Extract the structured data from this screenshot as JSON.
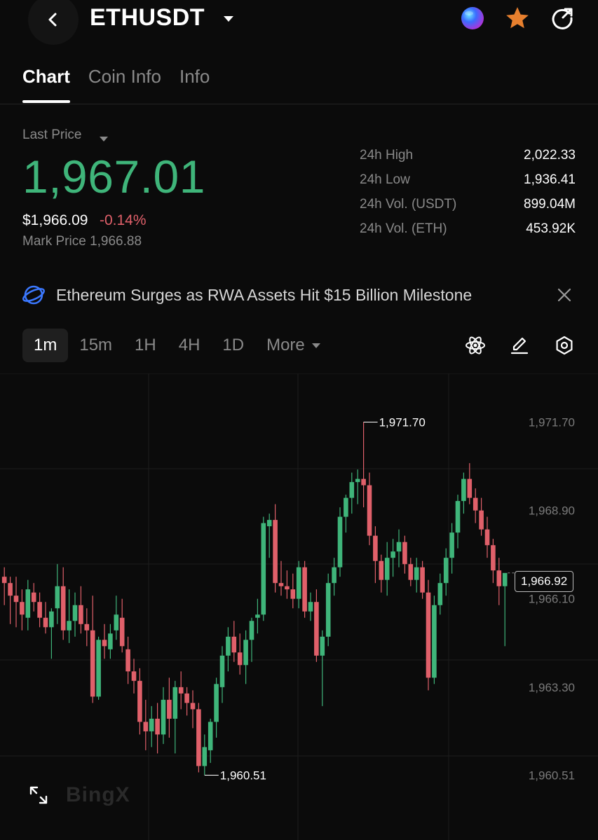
{
  "header": {
    "pair": "ETHUSDT",
    "icons": [
      "back-icon",
      "caret-down-icon",
      "ai-orb-icon",
      "star-icon",
      "share-icon"
    ]
  },
  "tabs": [
    {
      "label": "Chart",
      "active": true
    },
    {
      "label": "Coin Info",
      "active": false
    },
    {
      "label": "Info",
      "active": false
    }
  ],
  "price": {
    "last_price_label": "Last Price",
    "last_price": "1,967.01",
    "usd_price": "$1,966.09",
    "change": "-0.14%",
    "mark_price": "Mark Price 1,966.88"
  },
  "stats": [
    {
      "label": "24h High",
      "value": "2,022.33"
    },
    {
      "label": "24h Low",
      "value": "1,936.41"
    },
    {
      "label": "24h Vol. (USDT)",
      "value": "899.04M"
    },
    {
      "label": "24h Vol. (ETH)",
      "value": "453.92K"
    }
  ],
  "news": {
    "headline": "Ethereum Surges as RWA Assets Hit $15 Billion Milestone"
  },
  "intervals": [
    {
      "label": "1m",
      "active": true
    },
    {
      "label": "15m",
      "active": false
    },
    {
      "label": "1H",
      "active": false
    },
    {
      "label": "4H",
      "active": false
    },
    {
      "label": "1D",
      "active": false
    },
    {
      "label": "More",
      "active": false
    }
  ],
  "colors": {
    "up": "#3fb57a",
    "down": "#e0606a",
    "accent": "#e8802e",
    "background": "#0b0b0b"
  },
  "chart_data": {
    "type": "candlestick",
    "title": "",
    "y_ticks": [
      "1,971.70",
      "1,968.90",
      "1,966.10",
      "1,963.30",
      "1,960.51"
    ],
    "y_tick_values": [
      1971.7,
      1968.9,
      1966.1,
      1963.3,
      1960.51
    ],
    "ylim": [
      1958.9,
      1972.8
    ],
    "current_price": "1,966.92",
    "current_price_value": 1966.92,
    "high_label": "1,971.70",
    "high_value": 1971.7,
    "low_label": "1,960.51",
    "low_value": 1960.51,
    "watermark": "BingX",
    "candles": [
      {
        "o": 1966.8,
        "h": 1967.1,
        "l": 1965.9,
        "c": 1966.6
      },
      {
        "o": 1966.6,
        "h": 1966.8,
        "l": 1965.3,
        "c": 1966.2
      },
      {
        "o": 1966.2,
        "h": 1966.8,
        "l": 1965.2,
        "c": 1966.0
      },
      {
        "o": 1966.0,
        "h": 1966.4,
        "l": 1965.1,
        "c": 1965.6
      },
      {
        "o": 1965.5,
        "h": 1966.7,
        "l": 1965.1,
        "c": 1966.4
      },
      {
        "o": 1966.3,
        "h": 1966.6,
        "l": 1965.7,
        "c": 1966.0
      },
      {
        "o": 1966.0,
        "h": 1966.3,
        "l": 1965.2,
        "c": 1965.5
      },
      {
        "o": 1965.5,
        "h": 1966.0,
        "l": 1965.0,
        "c": 1965.2
      },
      {
        "o": 1965.2,
        "h": 1965.8,
        "l": 1964.2,
        "c": 1965.7
      },
      {
        "o": 1965.8,
        "h": 1967.2,
        "l": 1965.3,
        "c": 1966.5
      },
      {
        "o": 1966.5,
        "h": 1967.1,
        "l": 1964.8,
        "c": 1965.1
      },
      {
        "o": 1965.1,
        "h": 1966.4,
        "l": 1964.7,
        "c": 1965.4
      },
      {
        "o": 1965.4,
        "h": 1966.3,
        "l": 1964.9,
        "c": 1965.9
      },
      {
        "o": 1965.9,
        "h": 1966.5,
        "l": 1965.0,
        "c": 1965.3
      },
      {
        "o": 1965.3,
        "h": 1965.8,
        "l": 1964.6,
        "c": 1965.1
      },
      {
        "o": 1965.1,
        "h": 1966.2,
        "l": 1962.8,
        "c": 1963.0
      },
      {
        "o": 1963.0,
        "h": 1964.9,
        "l": 1962.9,
        "c": 1964.8
      },
      {
        "o": 1964.8,
        "h": 1965.3,
        "l": 1964.2,
        "c": 1964.6
      },
      {
        "o": 1964.5,
        "h": 1965.3,
        "l": 1964.2,
        "c": 1965.0
      },
      {
        "o": 1965.1,
        "h": 1966.2,
        "l": 1964.8,
        "c": 1965.6
      },
      {
        "o": 1965.5,
        "h": 1966.1,
        "l": 1964.4,
        "c": 1964.6
      },
      {
        "o": 1964.5,
        "h": 1964.9,
        "l": 1963.4,
        "c": 1963.8
      },
      {
        "o": 1963.8,
        "h": 1964.2,
        "l": 1963.1,
        "c": 1963.5
      },
      {
        "o": 1963.5,
        "h": 1963.9,
        "l": 1961.8,
        "c": 1962.2
      },
      {
        "o": 1962.2,
        "h": 1962.9,
        "l": 1961.3,
        "c": 1961.9
      },
      {
        "o": 1961.9,
        "h": 1962.7,
        "l": 1961.4,
        "c": 1962.3
      },
      {
        "o": 1962.3,
        "h": 1962.8,
        "l": 1961.2,
        "c": 1961.8
      },
      {
        "o": 1961.8,
        "h": 1963.3,
        "l": 1961.5,
        "c": 1962.9
      },
      {
        "o": 1962.9,
        "h": 1963.6,
        "l": 1961.7,
        "c": 1962.3
      },
      {
        "o": 1962.3,
        "h": 1963.5,
        "l": 1961.2,
        "c": 1963.3
      },
      {
        "o": 1963.3,
        "h": 1963.8,
        "l": 1962.6,
        "c": 1963.1
      },
      {
        "o": 1963.1,
        "h": 1963.3,
        "l": 1962.4,
        "c": 1962.8
      },
      {
        "o": 1962.8,
        "h": 1963.2,
        "l": 1962.0,
        "c": 1962.6
      },
      {
        "o": 1962.6,
        "h": 1962.8,
        "l": 1960.6,
        "c": 1960.8
      },
      {
        "o": 1960.8,
        "h": 1961.8,
        "l": 1960.51,
        "c": 1961.4
      },
      {
        "o": 1961.3,
        "h": 1962.3,
        "l": 1960.9,
        "c": 1962.2
      },
      {
        "o": 1962.2,
        "h": 1963.6,
        "l": 1961.7,
        "c": 1963.4
      },
      {
        "o": 1963.3,
        "h": 1964.6,
        "l": 1962.8,
        "c": 1964.3
      },
      {
        "o": 1964.3,
        "h": 1965.2,
        "l": 1963.8,
        "c": 1964.9
      },
      {
        "o": 1964.9,
        "h": 1965.4,
        "l": 1964.1,
        "c": 1964.4
      },
      {
        "o": 1964.4,
        "h": 1965.0,
        "l": 1963.7,
        "c": 1964.0
      },
      {
        "o": 1964.0,
        "h": 1965.1,
        "l": 1963.4,
        "c": 1964.8
      },
      {
        "o": 1964.8,
        "h": 1965.5,
        "l": 1964.1,
        "c": 1965.4
      },
      {
        "o": 1965.5,
        "h": 1966.1,
        "l": 1965.0,
        "c": 1965.6
      },
      {
        "o": 1965.6,
        "h": 1968.7,
        "l": 1965.4,
        "c": 1968.5
      },
      {
        "o": 1968.4,
        "h": 1968.8,
        "l": 1967.4,
        "c": 1968.6
      },
      {
        "o": 1968.6,
        "h": 1969.1,
        "l": 1966.3,
        "c": 1966.6
      },
      {
        "o": 1966.6,
        "h": 1967.3,
        "l": 1966.2,
        "c": 1966.5
      },
      {
        "o": 1966.5,
        "h": 1967.0,
        "l": 1966.1,
        "c": 1966.4
      },
      {
        "o": 1966.4,
        "h": 1966.9,
        "l": 1965.8,
        "c": 1966.1
      },
      {
        "o": 1966.1,
        "h": 1967.3,
        "l": 1965.8,
        "c": 1967.1
      },
      {
        "o": 1967.1,
        "h": 1967.3,
        "l": 1965.5,
        "c": 1965.7
      },
      {
        "o": 1965.7,
        "h": 1966.3,
        "l": 1965.4,
        "c": 1966.0
      },
      {
        "o": 1966.0,
        "h": 1966.4,
        "l": 1964.1,
        "c": 1964.3
      },
      {
        "o": 1964.3,
        "h": 1965.1,
        "l": 1962.7,
        "c": 1964.9
      },
      {
        "o": 1964.9,
        "h": 1966.9,
        "l": 1964.6,
        "c": 1966.6
      },
      {
        "o": 1966.6,
        "h": 1967.4,
        "l": 1966.2,
        "c": 1967.1
      },
      {
        "o": 1967.1,
        "h": 1969.0,
        "l": 1966.8,
        "c": 1968.7
      },
      {
        "o": 1968.7,
        "h": 1969.4,
        "l": 1968.2,
        "c": 1969.3
      },
      {
        "o": 1969.3,
        "h": 1970.1,
        "l": 1968.8,
        "c": 1969.8
      },
      {
        "o": 1969.8,
        "h": 1970.2,
        "l": 1969.1,
        "c": 1969.9
      },
      {
        "o": 1969.9,
        "h": 1971.7,
        "l": 1969.0,
        "c": 1969.7
      },
      {
        "o": 1969.7,
        "h": 1970.1,
        "l": 1967.8,
        "c": 1968.1
      },
      {
        "o": 1968.1,
        "h": 1968.4,
        "l": 1966.6,
        "c": 1967.3
      },
      {
        "o": 1967.3,
        "h": 1967.5,
        "l": 1966.3,
        "c": 1966.7
      },
      {
        "o": 1966.7,
        "h": 1967.9,
        "l": 1966.2,
        "c": 1967.4
      },
      {
        "o": 1967.4,
        "h": 1968.0,
        "l": 1966.8,
        "c": 1967.6
      },
      {
        "o": 1967.6,
        "h": 1968.3,
        "l": 1967.1,
        "c": 1967.9
      },
      {
        "o": 1967.9,
        "h": 1968.1,
        "l": 1966.9,
        "c": 1967.2
      },
      {
        "o": 1967.2,
        "h": 1967.4,
        "l": 1966.5,
        "c": 1966.7
      },
      {
        "o": 1966.7,
        "h": 1967.4,
        "l": 1966.3,
        "c": 1967.1
      },
      {
        "o": 1967.1,
        "h": 1967.3,
        "l": 1966.1,
        "c": 1966.3
      },
      {
        "o": 1966.3,
        "h": 1966.7,
        "l": 1963.2,
        "c": 1963.6
      },
      {
        "o": 1963.6,
        "h": 1966.2,
        "l": 1963.4,
        "c": 1965.9
      },
      {
        "o": 1965.9,
        "h": 1966.9,
        "l": 1965.6,
        "c": 1966.6
      },
      {
        "o": 1966.6,
        "h": 1967.7,
        "l": 1966.2,
        "c": 1967.4
      },
      {
        "o": 1967.4,
        "h": 1968.5,
        "l": 1966.9,
        "c": 1968.2
      },
      {
        "o": 1968.2,
        "h": 1969.4,
        "l": 1967.7,
        "c": 1969.2
      },
      {
        "o": 1969.2,
        "h": 1970.1,
        "l": 1968.8,
        "c": 1969.9
      },
      {
        "o": 1969.9,
        "h": 1970.4,
        "l": 1969.1,
        "c": 1969.3
      },
      {
        "o": 1969.3,
        "h": 1969.6,
        "l": 1968.5,
        "c": 1968.9
      },
      {
        "o": 1968.9,
        "h": 1969.3,
        "l": 1968.1,
        "c": 1968.3
      },
      {
        "o": 1968.3,
        "h": 1968.7,
        "l": 1967.4,
        "c": 1967.8
      },
      {
        "o": 1967.8,
        "h": 1968.0,
        "l": 1966.6,
        "c": 1967.0
      },
      {
        "o": 1967.0,
        "h": 1967.4,
        "l": 1965.9,
        "c": 1966.5
      },
      {
        "o": 1966.5,
        "h": 1966.9,
        "l": 1964.6,
        "c": 1966.92
      }
    ]
  }
}
